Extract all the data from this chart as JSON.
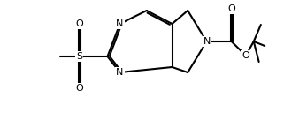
{
  "bg": "#ffffff",
  "lw": 1.5,
  "fs": 8.0,
  "figsize": [
    3.47,
    1.28
  ],
  "dpi": 100,
  "xlim": [
    -1.8,
    11.2
  ],
  "ylim": [
    -1.5,
    5.0
  ]
}
